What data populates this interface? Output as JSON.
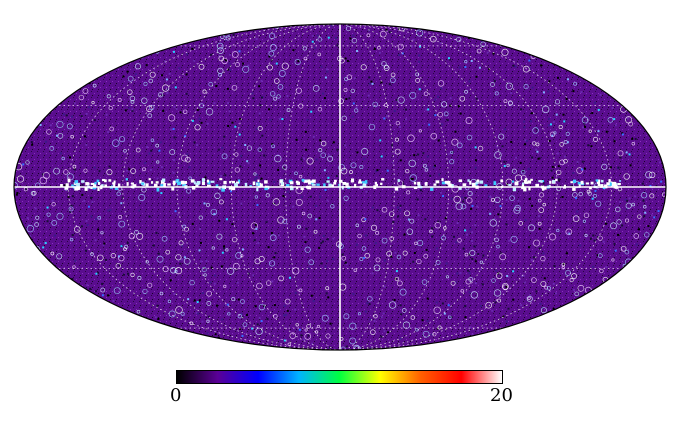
{
  "map": {
    "projection": "mollweide",
    "background_color": "#5a0d8f",
    "graticule": true,
    "graticule_color": "#ffffff",
    "galactic_plane_emphasis": true
  },
  "colorbar": {
    "min_label": "0",
    "max_label": "20",
    "colormap": [
      "#000000",
      "#5a0096",
      "#0000ff",
      "#00b4ff",
      "#00ff40",
      "#ffff00",
      "#ff6000",
      "#ff0000",
      "#ffffff"
    ]
  }
}
